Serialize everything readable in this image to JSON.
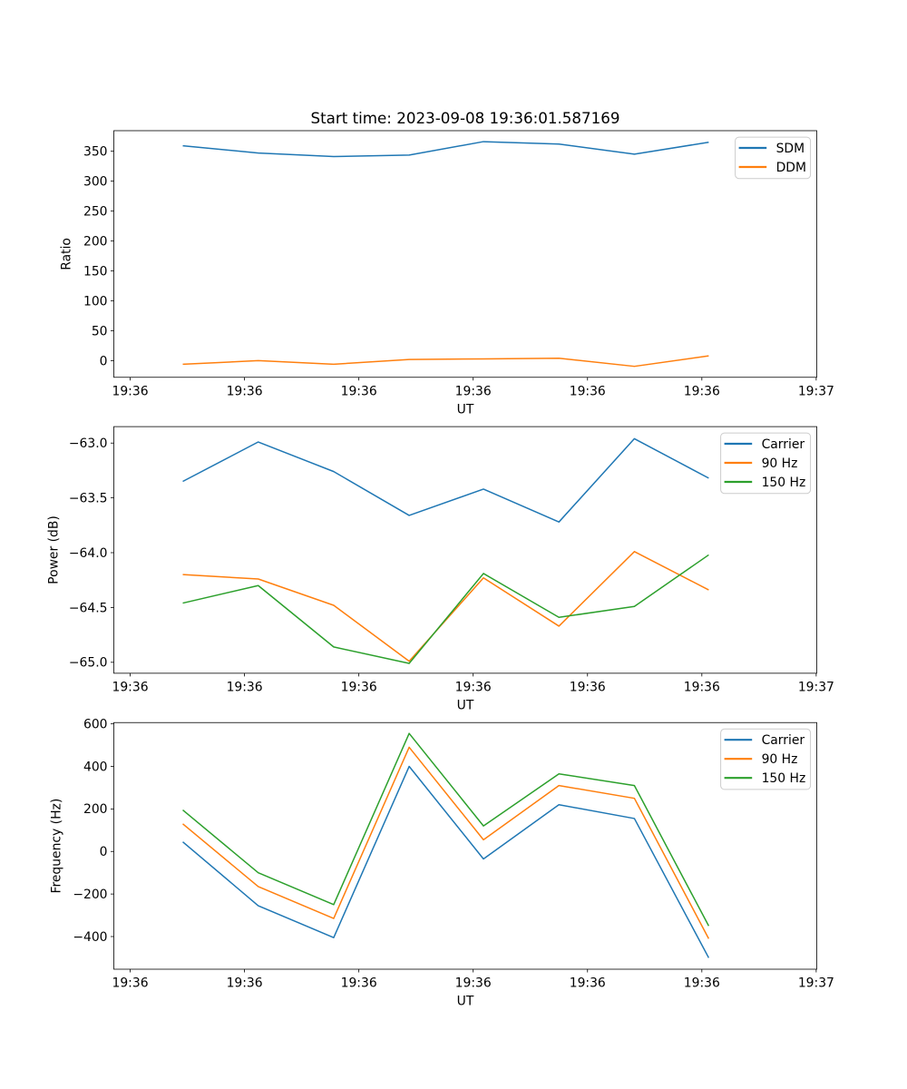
{
  "figure": {
    "background": "#ffffff",
    "suptitle": "Start time: 2023-09-08 19:36:01.587169"
  },
  "chart_data": [
    {
      "type": "line",
      "title": "Start time: 2023-09-08 19:36:01.587169",
      "xlabel": "UT",
      "ylabel": "Ratio",
      "x_unit": "seconds after 19:36:00 UT",
      "x": [
        4.6,
        11.2,
        17.8,
        24.4,
        30.9,
        37.5,
        44.1,
        50.6
      ],
      "series": [
        {
          "name": "SDM",
          "color": "#1f77b4",
          "values": [
            359,
            347,
            341,
            343.5,
            366,
            362,
            345,
            365
          ]
        },
        {
          "name": "DDM",
          "color": "#ff7f0e",
          "values": [
            -6,
            0,
            -6,
            2,
            3,
            4,
            -9.5,
            8
          ]
        }
      ],
      "xlim": [
        -1.43,
        60.05
      ],
      "ylim": [
        -27.8,
        384.3
      ],
      "xticks": {
        "values": [
          0,
          10,
          20,
          30,
          40,
          50,
          60
        ],
        "labels": [
          "19:36",
          "19:36",
          "19:36",
          "19:36",
          "19:36",
          "19:36",
          "19:37"
        ]
      },
      "yticks": {
        "values": [
          0,
          50,
          100,
          150,
          200,
          250,
          300,
          350
        ],
        "labels": [
          "0",
          "50",
          "100",
          "150",
          "200",
          "250",
          "300",
          "350"
        ]
      },
      "legend": {
        "location": "upper right",
        "entries": [
          "SDM",
          "DDM"
        ]
      },
      "grid": false
    },
    {
      "type": "line",
      "title": "",
      "xlabel": "UT",
      "ylabel": "Power (dB)",
      "x_unit": "seconds after 19:36:00 UT",
      "x": [
        4.6,
        11.2,
        17.8,
        24.4,
        30.9,
        37.5,
        44.1,
        50.6
      ],
      "series": [
        {
          "name": "Carrier",
          "color": "#1f77b4",
          "values": [
            -63.35,
            -62.99,
            -63.26,
            -63.66,
            -63.42,
            -63.72,
            -62.96,
            -63.32
          ]
        },
        {
          "name": "90 Hz",
          "color": "#ff7f0e",
          "values": [
            -64.2,
            -64.24,
            -64.48,
            -64.99,
            -64.23,
            -64.67,
            -63.99,
            -64.34
          ]
        },
        {
          "name": "150 Hz",
          "color": "#2ca02c",
          "values": [
            -64.46,
            -64.3,
            -64.86,
            -65.01,
            -64.19,
            -64.59,
            -64.49,
            -64.02
          ]
        }
      ],
      "xlim": [
        -1.43,
        60.05
      ],
      "ylim": [
        -65.1,
        -62.85
      ],
      "xticks": {
        "values": [
          0,
          10,
          20,
          30,
          40,
          50,
          60
        ],
        "labels": [
          "19:36",
          "19:36",
          "19:36",
          "19:36",
          "19:36",
          "19:36",
          "19:37"
        ]
      },
      "yticks": {
        "values": [
          -65.0,
          -64.5,
          -64.0,
          -63.5,
          -63.0
        ],
        "labels": [
          "−65.0",
          "−64.5",
          "−64.0",
          "−63.5",
          "−63.0"
        ]
      },
      "legend": {
        "location": "upper right",
        "entries": [
          "Carrier",
          "90 Hz",
          "150 Hz"
        ]
      },
      "grid": false
    },
    {
      "type": "line",
      "title": "",
      "xlabel": "UT",
      "ylabel": "Frequency (Hz)",
      "x_unit": "seconds after 19:36:00 UT",
      "x": [
        4.6,
        11.2,
        17.8,
        24.4,
        30.9,
        37.5,
        44.1,
        50.6
      ],
      "series": [
        {
          "name": "Carrier",
          "color": "#1f77b4",
          "values": [
            45,
            -255,
            -405,
            400,
            -35,
            220,
            155,
            -500
          ]
        },
        {
          "name": "90 Hz",
          "color": "#ff7f0e",
          "values": [
            130,
            -165,
            -315,
            490,
            55,
            310,
            250,
            -410
          ]
        },
        {
          "name": "150 Hz",
          "color": "#2ca02c",
          "values": [
            195,
            -100,
            -250,
            555,
            120,
            365,
            310,
            -350
          ]
        }
      ],
      "xlim": [
        -1.43,
        60.05
      ],
      "ylim": [
        -553.6,
        606.1
      ],
      "xticks": {
        "values": [
          0,
          10,
          20,
          30,
          40,
          50,
          60
        ],
        "labels": [
          "19:36",
          "19:36",
          "19:36",
          "19:36",
          "19:36",
          "19:36",
          "19:37"
        ]
      },
      "yticks": {
        "values": [
          -400,
          -200,
          0,
          200,
          400,
          600
        ],
        "labels": [
          "−400",
          "−200",
          "0",
          "200",
          "400",
          "600"
        ]
      },
      "legend": {
        "location": "upper right",
        "entries": [
          "Carrier",
          "90 Hz",
          "150 Hz"
        ]
      },
      "grid": false
    }
  ]
}
